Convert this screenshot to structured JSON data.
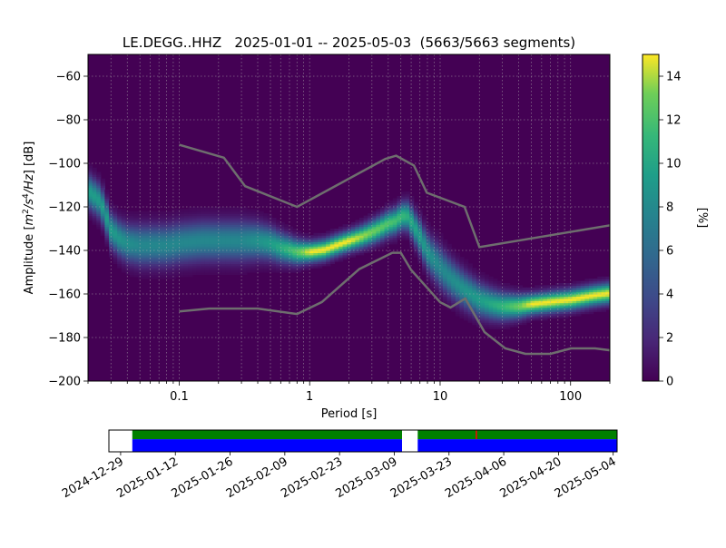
{
  "chart_data": {
    "type": "heatmap",
    "title": "LE.DEGG..HHZ   2025-01-01 -- 2025-05-03  (5663/5663 segments)",
    "xlabel": "Period [s]",
    "ylabel_main": "Amplitude [",
    "ylabel_unit_suffix": "] [dB]",
    "ylabel_math": {
      "m": "m",
      "m_exp": "2",
      "slash1": "/s",
      "s_exp": "4",
      "rest": "/Hz"
    },
    "x_scale": "log",
    "xlim": [
      0.02,
      200
    ],
    "ylim": [
      -200,
      -50
    ],
    "x_ticks": [
      {
        "v": 0.1,
        "label": "0.1"
      },
      {
        "v": 1,
        "label": "1"
      },
      {
        "v": 10,
        "label": "10"
      },
      {
        "v": 100,
        "label": "100"
      }
    ],
    "y_ticks": [
      {
        "v": -60,
        "label": "−60"
      },
      {
        "v": -80,
        "label": "−80"
      },
      {
        "v": -100,
        "label": "−100"
      },
      {
        "v": -120,
        "label": "−120"
      },
      {
        "v": -140,
        "label": "−140"
      },
      {
        "v": -160,
        "label": "−160"
      },
      {
        "v": -180,
        "label": "−180"
      },
      {
        "v": -200,
        "label": "−200"
      }
    ],
    "grid": true,
    "colormap": "viridis",
    "colorbar": {
      "label": "[%]",
      "range": [
        0,
        15
      ],
      "ticks": [
        {
          "v": 0,
          "label": "0"
        },
        {
          "v": 2,
          "label": "2"
        },
        {
          "v": 4,
          "label": "4"
        },
        {
          "v": 6,
          "label": "6"
        },
        {
          "v": 8,
          "label": "8"
        },
        {
          "v": 10,
          "label": "10"
        },
        {
          "v": 12,
          "label": "12"
        },
        {
          "v": 14,
          "label": "14"
        }
      ]
    },
    "mode_curve": {
      "period": [
        0.02,
        0.025,
        0.03,
        0.035,
        0.04,
        0.05,
        0.06,
        0.08,
        0.1,
        0.15,
        0.2,
        0.3,
        0.4,
        0.5,
        0.6,
        0.7,
        0.8,
        1,
        1.3,
        1.6,
        2,
        2.5,
        3,
        3.5,
        4,
        4.5,
        5,
        5.5,
        6,
        7,
        8,
        10,
        12,
        15,
        20,
        25,
        30,
        40,
        50,
        70,
        100,
        150,
        200
      ],
      "db": [
        -113,
        -118,
        -131,
        -135,
        -137,
        -138,
        -138,
        -138,
        -137,
        -136,
        -136,
        -136,
        -136,
        -137,
        -139,
        -140,
        -141,
        -141,
        -140,
        -138,
        -136,
        -134,
        -132,
        -130,
        -128,
        -127,
        -125,
        -124,
        -127,
        -134,
        -141,
        -148,
        -153,
        -158,
        -163,
        -165,
        -166,
        -166,
        -165,
        -164,
        -163,
        -161,
        -160
      ]
    },
    "spread": {
      "period": [
        0.02,
        0.03,
        0.05,
        0.1,
        0.3,
        0.5,
        1,
        2,
        5,
        10,
        20,
        50,
        200
      ],
      "half_width_db": [
        5,
        5,
        6,
        6,
        6,
        5,
        3,
        3,
        4,
        6,
        5,
        3,
        3
      ]
    },
    "noise_models": {
      "color": "#6e6e6e",
      "upper": {
        "period": [
          0.1,
          0.22,
          0.32,
          0.8,
          3.8,
          4.6,
          6.3,
          7.9,
          15.4,
          20,
          354.8
        ],
        "db": [
          -91.5,
          -97.4,
          -110.5,
          -120,
          -98,
          -96.5,
          -101,
          -113.5,
          -120,
          -138.5,
          -126
        ]
      },
      "lower": {
        "period": [
          0.1,
          0.17,
          0.4,
          0.8,
          1.24,
          2.4,
          4.3,
          5,
          6,
          10,
          12,
          15.6,
          21.9,
          31.6,
          45,
          70,
          101,
          154,
          328
        ],
        "db": [
          -168,
          -166.7,
          -166.7,
          -169.2,
          -163.7,
          -148.6,
          -141.1,
          -141.1,
          -149,
          -163.8,
          -166.2,
          -162.1,
          -177.5,
          -185,
          -187.5,
          -187.5,
          -185,
          -185,
          -187.5
        ]
      }
    },
    "timeline": {
      "x_ticks": [
        "2024-12-29",
        "2025-01-12",
        "2025-01-26",
        "2025-02-09",
        "2025-02-23",
        "2025-03-09",
        "2025-03-23",
        "2025-04-06",
        "2025-04-20",
        "2025-05-04"
      ],
      "range_days": [
        -3,
        127
      ],
      "segments": [
        {
          "start_day": 3,
          "end_day": 72
        },
        {
          "start_day": 76,
          "end_day": 127
        }
      ],
      "available_color": "#008000",
      "used_color": "#0000ff",
      "marker_day": 91,
      "marker_color": "#ff0000"
    }
  }
}
